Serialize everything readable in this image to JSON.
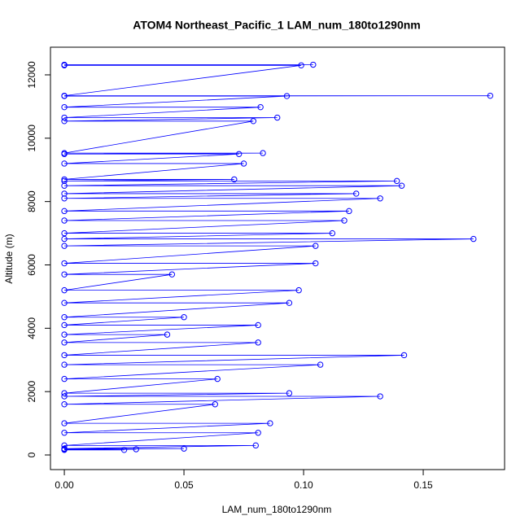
{
  "chart_data": {
    "type": "line",
    "title": "ATOM4 Northeast_Pacific_1 LAM_num_180to1290nm",
    "xlabel": "LAM_num_180to1290nm",
    "ylabel": "Altitude (m)",
    "color": "#0000ff",
    "marker": "open-circle",
    "x": [
      0,
      0.104,
      0,
      0.099,
      0,
      0.178,
      0,
      0.093,
      0,
      0.082,
      0,
      0.089,
      0,
      0.079,
      0,
      0.083,
      0,
      0.073,
      0,
      0.075,
      0,
      0.071,
      0,
      0.139,
      0,
      0.141,
      0,
      0.122,
      0,
      0.132,
      0,
      0.119,
      0,
      0.117,
      0,
      0.112,
      0,
      0.171,
      0,
      0.105,
      0,
      0.105,
      0,
      0.045,
      0,
      0.098,
      0,
      0.094,
      0,
      0.05,
      0,
      0.081,
      0,
      0.043,
      0,
      0.081,
      0,
      0.142,
      0,
      0.107,
      0,
      0.064,
      0,
      0.094,
      0,
      0.132,
      0,
      0.063,
      0,
      0.086,
      0,
      0.081,
      0,
      0.08,
      0,
      0.05,
      0,
      0.03,
      0,
      0.025
    ],
    "values": [
      12320,
      12320,
      12300,
      12300,
      11340,
      11340,
      11330,
      11330,
      10980,
      10980,
      10650,
      10650,
      10540,
      10540,
      9530,
      9530,
      9500,
      9500,
      9200,
      9200,
      8700,
      8700,
      8650,
      8650,
      8500,
      8500,
      8250,
      8250,
      8100,
      8100,
      7700,
      7700,
      7400,
      7400,
      7000,
      7000,
      6820,
      6820,
      6600,
      6600,
      6050,
      6050,
      5700,
      5700,
      5200,
      5200,
      4800,
      4800,
      4350,
      4350,
      4100,
      4100,
      3800,
      3800,
      3550,
      3550,
      3150,
      3150,
      2850,
      2850,
      2400,
      2400,
      1950,
      1950,
      1850,
      1850,
      1600,
      1600,
      1000,
      1000,
      700,
      700,
      300,
      300,
      200,
      200,
      180,
      180,
      160,
      160
    ],
    "xlim": [
      -0.0058,
      0.184
    ],
    "ylim": [
      -462,
      12873
    ],
    "xticks": [
      {
        "value": 0,
        "label": "0.00"
      },
      {
        "value": 0.05,
        "label": "0.05"
      },
      {
        "value": 0.1,
        "label": "0.10"
      },
      {
        "value": 0.15,
        "label": "0.15"
      }
    ],
    "yticks": [
      0,
      2000,
      4000,
      6000,
      8000,
      10000,
      12000
    ]
  }
}
